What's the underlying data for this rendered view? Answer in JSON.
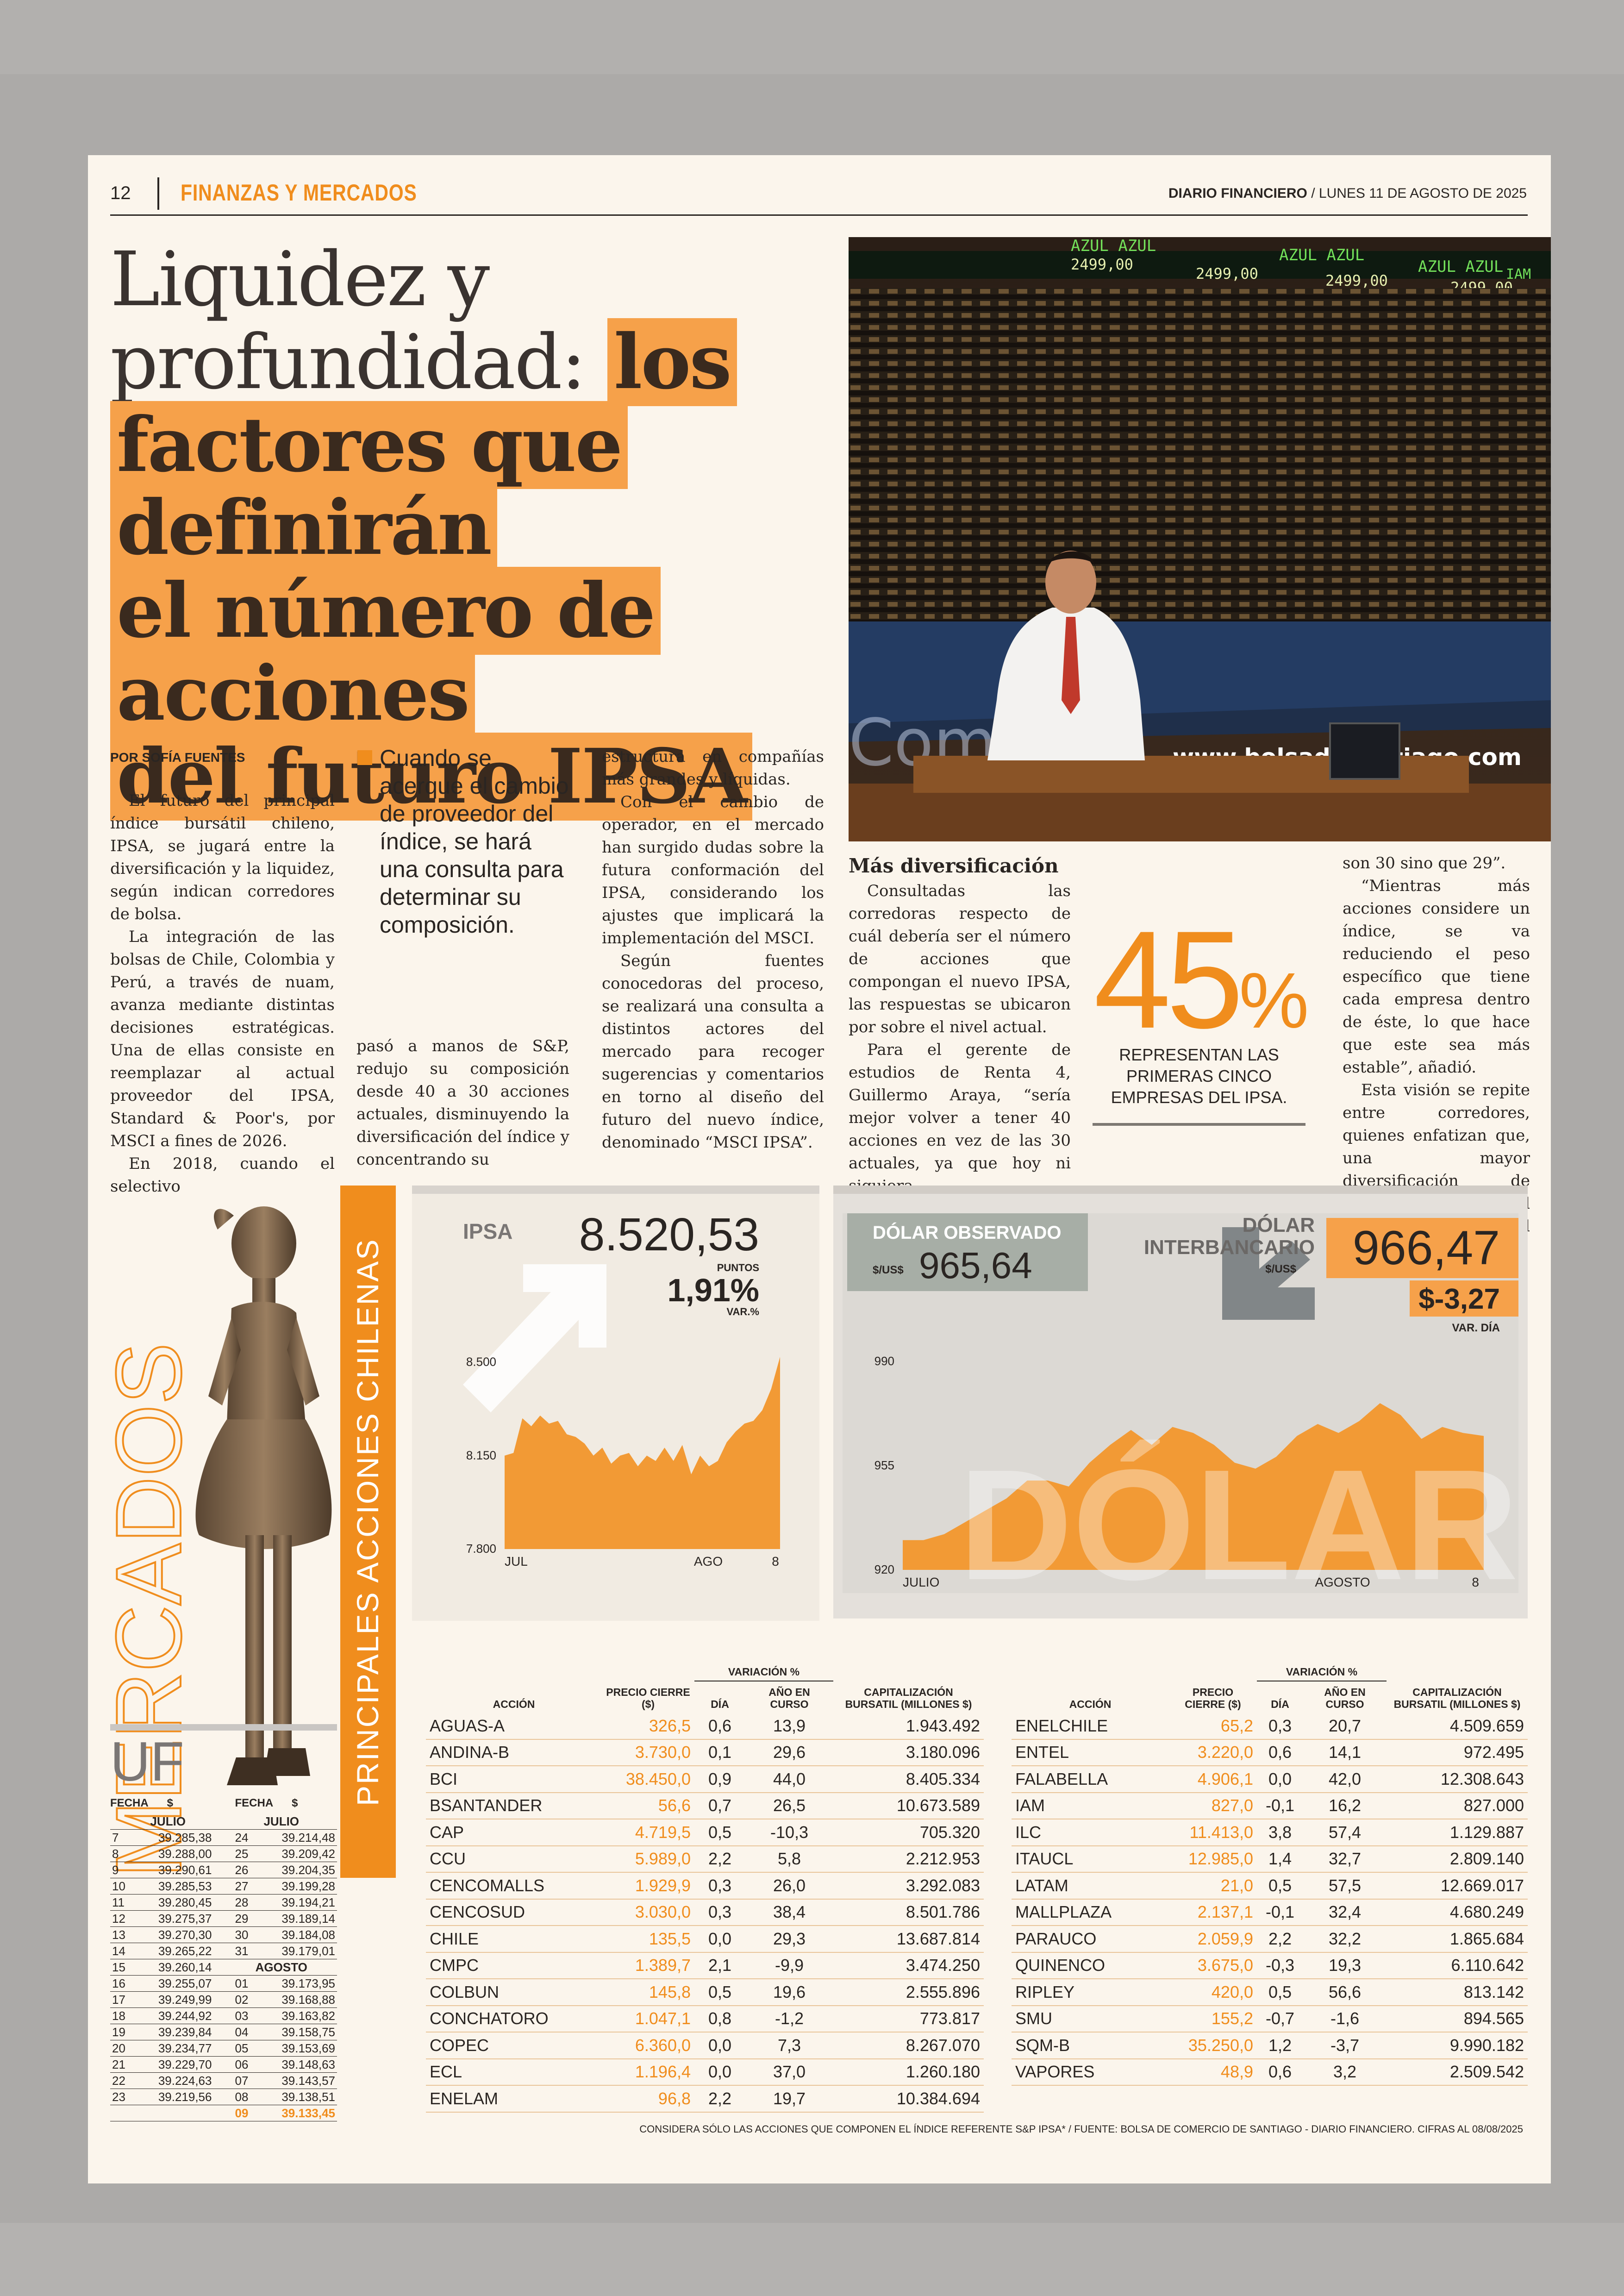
{
  "header": {
    "page_number": "12",
    "section": "FINANZAS Y MERCADOS",
    "masthead_name": "DIARIO FINANCIERO",
    "masthead_date": "/ LUNES 11 DE AGOSTO DE 2025"
  },
  "headline": {
    "plain": "Liquidez y profundidad:",
    "highlight_1": "los",
    "highlight_2": "factores que definirán",
    "highlight_3": "el número de acciones",
    "highlight_4": "del futuro IPSA"
  },
  "photo": {
    "board_titles": [
      "AZUL AZUL",
      "AZUL AZUL",
      "AZUL AZUL",
      "IAM"
    ],
    "board_values": [
      "2499,00",
      "2499,00",
      "2499,00",
      "2499,00"
    ],
    "url_text": "www.bolsadesantiago.com"
  },
  "article": {
    "byline": "POR SOFÍA FUENTES",
    "col1": [
      "El futuro del principal índice bursátil chileno, IPSA, se jugará entre la diversificación y la liquidez, según indican corredores de bolsa.",
      "La integración de las bolsas de Chile, Colombia y Perú, a través de nuam, avanza mediante distintas decisiones estratégicas. Una de ellas consiste en reemplazar al actual proveedor del IPSA, Standard & Poor's, por MSCI a fines de 2026.",
      "En 2018, cuando el selectivo"
    ],
    "pull_quote": "Cuando se acerque el cambio de proveedor del índice, se hará una consulta para determinar su composición.",
    "col2": "pasó a manos de S&P, redujo su composición desde 40 a 30 acciones actuales, disminuyendo la diversificación del índice y concentrando su",
    "col3": [
      "estructura en compañías más grandes y líquidas.",
      "Con el cambio de operador, en el mercado han surgido dudas sobre la futura conformación del IPSA, considerando los ajustes que implicará la implementación del MSCI.",
      "Según fuentes conocedoras del proceso, se realizará una consulta a distintos actores del mercado para recoger sugerencias y comentarios en torno al diseño del futuro del nuevo índice, denominado “MSCI IPSA”."
    ],
    "subhead": "Más diversificación",
    "col4": [
      "Consultadas las corredoras respecto de cuál debería ser el número de acciones que compongan el nuevo IPSA, las respuestas se ubicaron por sobre el nivel actual.",
      "Para el gerente de estudios de Renta 4, Guillermo Araya, “sería mejor volver a tener 40 acciones en vez de las 30 actuales, ya que hoy ni siquiera"
    ],
    "col5": [
      "son 30 sino que 29”.",
      "“Mientras más acciones considere un índice, se va reduciendo el peso específico que tiene cada empresa dentro de éste, lo que hace que este sea más estable”, añadió.",
      "Esta visión se repite entre corredores, quienes enfatizan que, una mayor diversificación de papeles favorecería el desarrollo del mercado,"
    ],
    "stat_number": "45",
    "stat_unit": "%",
    "stat_caption": "REPRESENTAN LAS PRIMERAS CINCO EMPRESAS DEL IPSA."
  },
  "mercados": {
    "side_title": "MERCADOS",
    "banner_title": "PRINCIPALES ACCIONES CHILENAS"
  },
  "uf": {
    "title": "UF",
    "col_fecha": "FECHA",
    "col_valor": "$",
    "month_july": "JULIO",
    "month_aug": "AGOSTO",
    "left": [
      [
        "7",
        "39.285,38"
      ],
      [
        "8",
        "39.288,00"
      ],
      [
        "9",
        "39.290,61"
      ],
      [
        "10",
        "39.285,53"
      ],
      [
        "11",
        "39.280,45"
      ],
      [
        "12",
        "39.275,37"
      ],
      [
        "13",
        "39.270,30"
      ],
      [
        "14",
        "39.265,22"
      ],
      [
        "15",
        "39.260,14"
      ],
      [
        "16",
        "39.255,07"
      ],
      [
        "17",
        "39.249,99"
      ],
      [
        "18",
        "39.244,92"
      ],
      [
        "19",
        "39.239,84"
      ],
      [
        "20",
        "39.234,77"
      ],
      [
        "21",
        "39.229,70"
      ],
      [
        "22",
        "39.224,63"
      ],
      [
        "23",
        "39.219,56"
      ]
    ],
    "right_july": [
      [
        "24",
        "39.214,48"
      ],
      [
        "25",
        "39.209,42"
      ],
      [
        "26",
        "39.204,35"
      ],
      [
        "27",
        "39.199,28"
      ],
      [
        "28",
        "39.194,21"
      ],
      [
        "29",
        "39.189,14"
      ],
      [
        "30",
        "39.184,08"
      ],
      [
        "31",
        "39.179,01"
      ]
    ],
    "right_aug": [
      [
        "01",
        "39.173,95"
      ],
      [
        "02",
        "39.168,88"
      ],
      [
        "03",
        "39.163,82"
      ],
      [
        "04",
        "39.158,75"
      ],
      [
        "05",
        "39.153,69"
      ],
      [
        "06",
        "39.148,63"
      ],
      [
        "07",
        "39.143,57"
      ],
      [
        "08",
        "39.138,51"
      ],
      [
        "09",
        "39.133,45"
      ]
    ]
  },
  "ipsa": {
    "label": "IPSA",
    "value": "8.520,53",
    "unit": "PUNTOS",
    "change": "1,91%",
    "change_label": "VAR.%",
    "y_ticks": [
      "8.500",
      "8.150",
      "7.800"
    ],
    "x_ticks": [
      "JUL",
      "AGO",
      "8"
    ]
  },
  "dolar": {
    "obs_label": "DÓLAR OBSERVADO",
    "obs_unit": "$/US$",
    "obs_value": "965,64",
    "inter_label_1": "DÓLAR",
    "inter_label_2": "INTERBANCARIO",
    "inter_unit": "$/US$",
    "inter_value": "966,47",
    "inter_change": "$-3,27",
    "inter_change_label": "VAR. DÍA",
    "watermark": "DÓLAR",
    "y_ticks": [
      "990",
      "955",
      "920"
    ],
    "x_ticks": [
      "JULIO",
      "AGOSTO",
      "8"
    ]
  },
  "chart_data": [
    {
      "type": "area",
      "series": [
        {
          "values": [
            8150,
            8160,
            8290,
            8260,
            8300,
            8270,
            8280,
            8230,
            8220,
            8195,
            8150,
            8180,
            8120,
            8150,
            8160,
            8110,
            8150,
            8130,
            8180,
            8130,
            8190,
            8080,
            8150,
            8110,
            8130,
            8200,
            8240,
            8270,
            8280,
            8320,
            8400,
            8520
          ]
        }
      ],
      "ylim": [
        7800,
        8520
      ],
      "x_labels": [
        "JUL",
        "AGO",
        "8"
      ],
      "y_ticks": [
        7800,
        8150,
        8500
      ]
    },
    {
      "type": "area",
      "series": [
        {
          "values": [
            930,
            930,
            932,
            936,
            940,
            944,
            950,
            950,
            948,
            956,
            962,
            967,
            962,
            968,
            966,
            962,
            956,
            954,
            958,
            965,
            969,
            966,
            970,
            976,
            972,
            964,
            968,
            966,
            965
          ]
        }
      ],
      "ylim": [
        920,
        990
      ],
      "x_labels": [
        "JULIO",
        "AGOSTO",
        "8"
      ],
      "y_ticks": [
        920,
        955,
        990
      ]
    }
  ],
  "stocks": {
    "headers": {
      "accion": "ACCIÓN",
      "precio": "PRECIO CIERRE ($)",
      "variacion": "VARIACIÓN %",
      "dia": "DÍA",
      "anio": "AÑO EN CURSO",
      "cap": "CAPITALIZACIÓN BURSATIL (MILLONES $)"
    },
    "left": [
      [
        "AGUAS-A",
        "326,5",
        "0,6",
        "13,9",
        "1.943.492"
      ],
      [
        "ANDINA-B",
        "3.730,0",
        "0,1",
        "29,6",
        "3.180.096"
      ],
      [
        "BCI",
        "38.450,0",
        "0,9",
        "44,0",
        "8.405.334"
      ],
      [
        "BSANTANDER",
        "56,6",
        "0,7",
        "26,5",
        "10.673.589"
      ],
      [
        "CAP",
        "4.719,5",
        "0,5",
        "-10,3",
        "705.320"
      ],
      [
        "CCU",
        "5.989,0",
        "2,2",
        "5,8",
        "2.212.953"
      ],
      [
        "CENCOMALLS",
        "1.929,9",
        "0,3",
        "26,0",
        "3.292.083"
      ],
      [
        "CENCOSUD",
        "3.030,0",
        "0,3",
        "38,4",
        "8.501.786"
      ],
      [
        "CHILE",
        "135,5",
        "0,0",
        "29,3",
        "13.687.814"
      ],
      [
        "CMPC",
        "1.389,7",
        "2,1",
        "-9,9",
        "3.474.250"
      ],
      [
        "COLBUN",
        "145,8",
        "0,5",
        "19,6",
        "2.555.896"
      ],
      [
        "CONCHATORO",
        "1.047,1",
        "0,8",
        "-1,2",
        "773.817"
      ],
      [
        "COPEC",
        "6.360,0",
        "0,0",
        "7,3",
        "8.267.070"
      ],
      [
        "ECL",
        "1.196,4",
        "0,0",
        "37,0",
        "1.260.180"
      ],
      [
        "ENELAM",
        "96,8",
        "2,2",
        "19,7",
        "10.384.694"
      ]
    ],
    "right": [
      [
        "ENELCHILE",
        "65,2",
        "0,3",
        "20,7",
        "4.509.659"
      ],
      [
        "ENTEL",
        "3.220,0",
        "0,6",
        "14,1",
        "972.495"
      ],
      [
        "FALABELLA",
        "4.906,1",
        "0,0",
        "42,0",
        "12.308.643"
      ],
      [
        "IAM",
        "827,0",
        "-0,1",
        "16,2",
        "827.000"
      ],
      [
        "ILC",
        "11.413,0",
        "3,8",
        "57,4",
        "1.129.887"
      ],
      [
        "ITAUCL",
        "12.985,0",
        "1,4",
        "32,7",
        "2.809.140"
      ],
      [
        "LATAM",
        "21,0",
        "0,5",
        "57,5",
        "12.669.017"
      ],
      [
        "MALLPLAZA",
        "2.137,1",
        "-0,1",
        "32,4",
        "4.680.249"
      ],
      [
        "PARAUCO",
        "2.059,9",
        "2,2",
        "32,2",
        "1.865.684"
      ],
      [
        "QUINENCO",
        "3.675,0",
        "-0,3",
        "19,3",
        "6.110.642"
      ],
      [
        "RIPLEY",
        "420,0",
        "0,5",
        "56,6",
        "813.142"
      ],
      [
        "SMU",
        "155,2",
        "-0,7",
        "-1,6",
        "894.565"
      ],
      [
        "SQM-B",
        "35.250,0",
        "1,2",
        "-3,7",
        "9.990.182"
      ],
      [
        "VAPORES",
        "48,9",
        "0,6",
        "3,2",
        "2.509.542"
      ]
    ]
  },
  "footnote": "CONSIDERA SÓLO LAS ACCIONES QUE COMPONEN EL ÍNDICE REFERENTE S&P IPSA* / FUENTE: BOLSA DE COMERCIO DE SANTIAGO - DIARIO FINANCIERO. CIFRAS AL 08/08/2025",
  "colors": {
    "accent": "#f08d1d",
    "highlight": "#f6a14a",
    "paper": "#fbf5ec",
    "ink": "#2a2522"
  }
}
